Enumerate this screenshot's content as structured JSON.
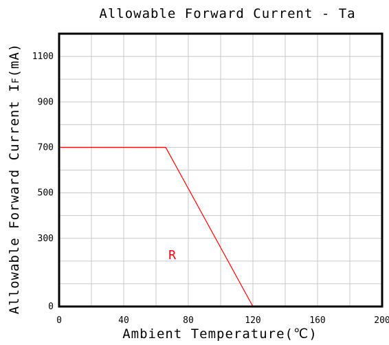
{
  "chart_data": {
    "type": "line",
    "title": "Allowable Forward Current - Ta",
    "xlabel": "Ambient Temperature(℃)",
    "ylabel": "Allowable Forward Current I",
    "ylabel_subscript": "F",
    "ylabel_suffix": "(mA)",
    "xlim": [
      0,
      200
    ],
    "ylim": [
      0,
      1200
    ],
    "xticks": [
      0,
      40,
      80,
      120,
      160,
      200
    ],
    "yticks": [
      0,
      300,
      500,
      700,
      900,
      1100
    ],
    "x_grid_step": 20,
    "y_grid_step": 100,
    "grid": true,
    "series": [
      {
        "name": "R",
        "color": "#ff0000",
        "points": [
          [
            0,
            700
          ],
          [
            66,
            700
          ],
          [
            120,
            0
          ]
        ],
        "label_at": [
          70,
          230
        ]
      }
    ]
  }
}
